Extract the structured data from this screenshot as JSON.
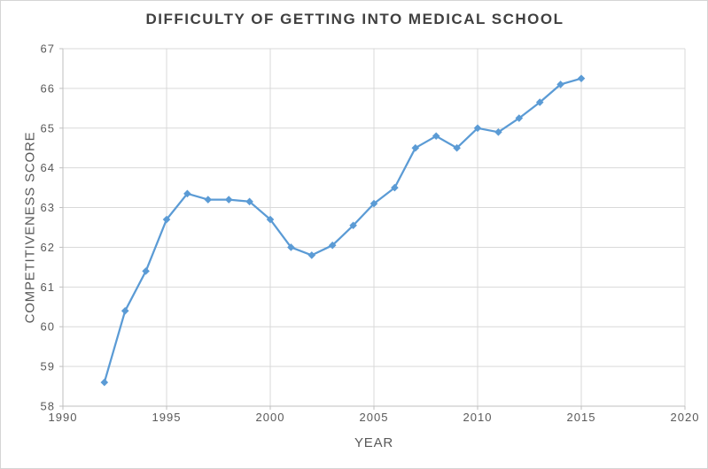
{
  "chart_data": {
    "type": "line",
    "title": "DIFFICULTY OF GETTING INTO MEDICAL SCHOOL",
    "xlabel": "YEAR",
    "ylabel": "COMPETITIVENESS SCORE",
    "x": [
      1992,
      1993,
      1994,
      1995,
      1996,
      1997,
      1998,
      1999,
      2000,
      2001,
      2002,
      2003,
      2004,
      2005,
      2006,
      2007,
      2008,
      2009,
      2010,
      2011,
      2012,
      2013,
      2014,
      2015
    ],
    "values": [
      58.6,
      60.4,
      61.4,
      62.7,
      63.35,
      63.2,
      63.2,
      63.15,
      62.7,
      62.0,
      61.8,
      62.05,
      62.55,
      63.1,
      63.5,
      64.5,
      64.8,
      64.5,
      65.0,
      64.9,
      65.25,
      65.65,
      66.1,
      66.25
    ],
    "xlim": [
      1990,
      2020
    ],
    "ylim": [
      58,
      67
    ],
    "x_ticks": [
      1990,
      1995,
      2000,
      2005,
      2010,
      2015,
      2020
    ],
    "y_ticks": [
      58,
      59,
      60,
      61,
      62,
      63,
      64,
      65,
      66,
      67
    ],
    "grid": true,
    "legend": false,
    "marker": "diamond",
    "colors": {
      "line": "#5B9BD5",
      "gridline": "#D9D9D9",
      "axis_line": "#BFBFBF",
      "tick_text": "#595959",
      "title_text": "#404040"
    }
  }
}
